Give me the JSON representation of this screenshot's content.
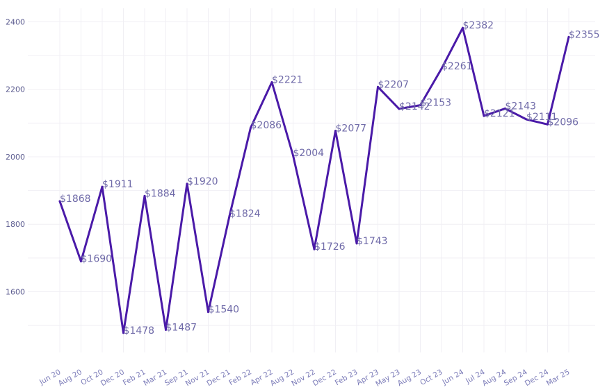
{
  "chart_data": {
    "type": "line",
    "title": "",
    "xlabel": "",
    "ylabel": "",
    "categories": [
      "Jun 20",
      "Aug 20",
      "Oct 20",
      "Dec 20",
      "Feb 21",
      "Mar 21",
      "Sep 21",
      "Nov 21",
      "Dec 21",
      "Feb 22",
      "Apr 22",
      "Aug 22",
      "Nov 22",
      "Dec 22",
      "Feb 23",
      "Apr 23",
      "May 23",
      "Aug 23",
      "Oct 23",
      "Jun 24",
      "Jul 24",
      "Aug 24",
      "Sep 24",
      "Dec 24",
      "Mar 25"
    ],
    "values": [
      1868,
      1690,
      1911,
      1478,
      1884,
      1487,
      1920,
      1540,
      1824,
      2086,
      2221,
      2004,
      1726,
      2077,
      1743,
      2207,
      2142,
      2153,
      2261,
      2382,
      2121,
      2143,
      2111,
      2096,
      2355
    ],
    "data_labels": [
      "$1868",
      "$1690",
      "$1911",
      "$1478",
      "$1884",
      "$1487",
      "$1920",
      "$1540",
      "$1824",
      "$2086",
      "$2221",
      "$2004",
      "$1726",
      "$2077",
      "$1743",
      "$2207",
      "$2142",
      "$2153",
      "$2261",
      "$2382",
      "$2121",
      "$2143",
      "$2111",
      "$2096",
      "$2355"
    ],
    "y_ticks": [
      "1600",
      "1800",
      "2000",
      "2200",
      "2400"
    ],
    "ylim": [
      1420,
      2440
    ],
    "grid": true,
    "legend": "none",
    "colors": {
      "line": "#4a1aa8",
      "label": "#6f6aa8",
      "grid": "#f0eff4"
    }
  }
}
